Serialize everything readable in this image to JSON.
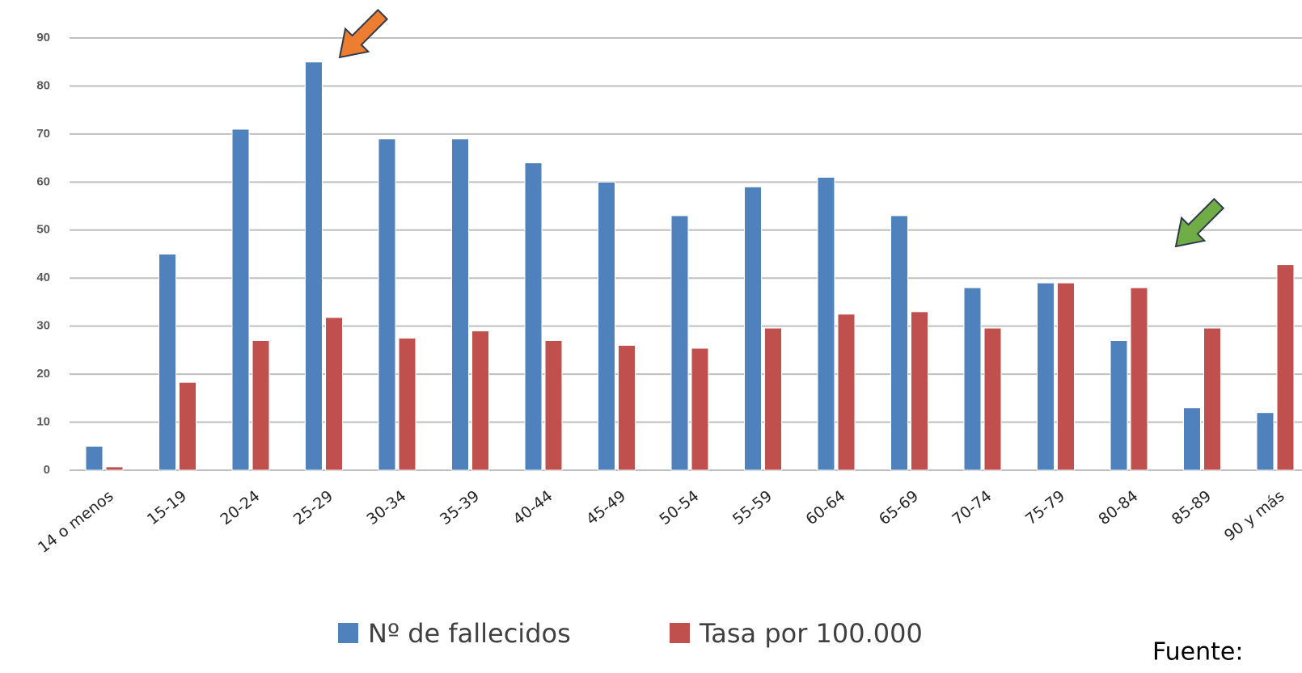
{
  "chart_data": {
    "type": "bar",
    "categories": [
      "14 o menos",
      "15-19",
      "20-24",
      "25-29",
      "30-34",
      "35-39",
      "40-44",
      "45-49",
      "50-54",
      "55-59",
      "60-64",
      "65-69",
      "70-74",
      "75-79",
      "80-84",
      "85-89",
      "90 y más"
    ],
    "series": [
      {
        "name": "Nº de fallecidos",
        "color": "#4f81bd",
        "values": [
          5,
          45,
          71,
          85,
          69,
          69,
          64,
          60,
          53,
          59,
          61,
          53,
          38,
          39,
          27,
          13,
          12
        ]
      },
      {
        "name": "Tasa por 100.000",
        "color": "#c0504d",
        "values": [
          0.7,
          18.3,
          27,
          31.8,
          27.5,
          29,
          27,
          26,
          25.4,
          29.6,
          32.5,
          33,
          29.6,
          39,
          38,
          29.6,
          42.8
        ]
      }
    ],
    "ylim": [
      0,
      90
    ],
    "yticks": [
      0,
      10,
      20,
      30,
      40,
      50,
      60,
      70,
      80,
      90
    ],
    "grid": true,
    "legend": "bottom",
    "annotation": "Fuente:"
  }
}
